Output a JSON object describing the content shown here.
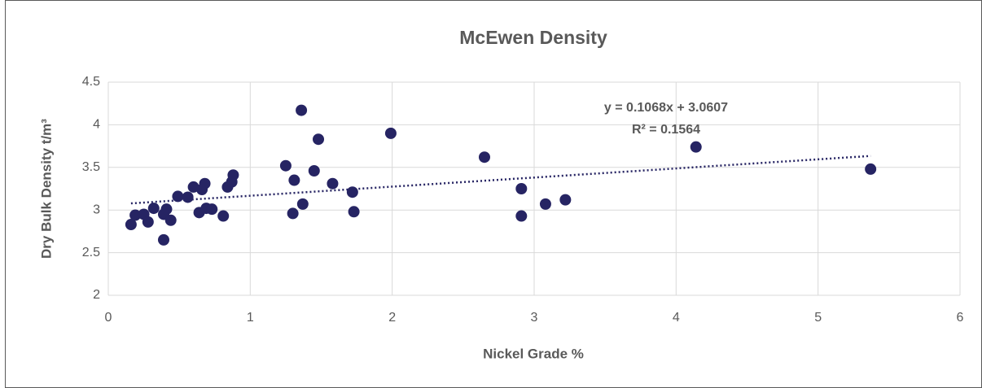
{
  "chart_data": {
    "type": "scatter",
    "title": "McEwen Density",
    "x_label": "Nickel Grade %",
    "y_label": "Dry Bulk Density t/m³",
    "series": [
      {
        "color": "#262463",
        "x": [
          0.16,
          0.19,
          0.25,
          0.28,
          0.32,
          0.39,
          0.39,
          0.41,
          0.44,
          0.49,
          0.56,
          0.6,
          0.64,
          0.66,
          0.68,
          0.69,
          0.73,
          0.81,
          0.84,
          0.87,
          0.88,
          1.25,
          1.3,
          1.31,
          1.36,
          1.37,
          1.45,
          1.48,
          1.58,
          1.72,
          1.73,
          1.99,
          2.65,
          2.91,
          2.91,
          3.08,
          3.22,
          4.14,
          5.37
        ],
        "values": [
          2.83,
          2.94,
          2.95,
          2.86,
          3.02,
          2.65,
          2.95,
          3.01,
          2.88,
          3.16,
          3.15,
          3.27,
          2.97,
          3.24,
          3.31,
          3.02,
          3.01,
          2.93,
          3.27,
          3.33,
          3.41,
          3.52,
          2.96,
          3.35,
          4.17,
          3.07,
          3.46,
          3.83,
          3.31,
          3.21,
          2.98,
          3.9,
          3.62,
          2.93,
          3.25,
          3.07,
          3.12,
          3.74,
          3.48
        ]
      }
    ],
    "trendline": {
      "slope": 0.1068,
      "intercept": 3.0607,
      "color": "#262463",
      "labels": [
        "y = 0.1068x + 3.0607",
        "R² = 0.1564"
      ]
    },
    "xlim": [
      0,
      6
    ],
    "xticks": [
      0,
      1,
      2,
      3,
      4,
      5,
      6
    ],
    "ylim": [
      2,
      4.5
    ],
    "yticks": [
      2,
      2.5,
      3,
      3.5,
      4,
      4.5
    ],
    "grid": true
  }
}
